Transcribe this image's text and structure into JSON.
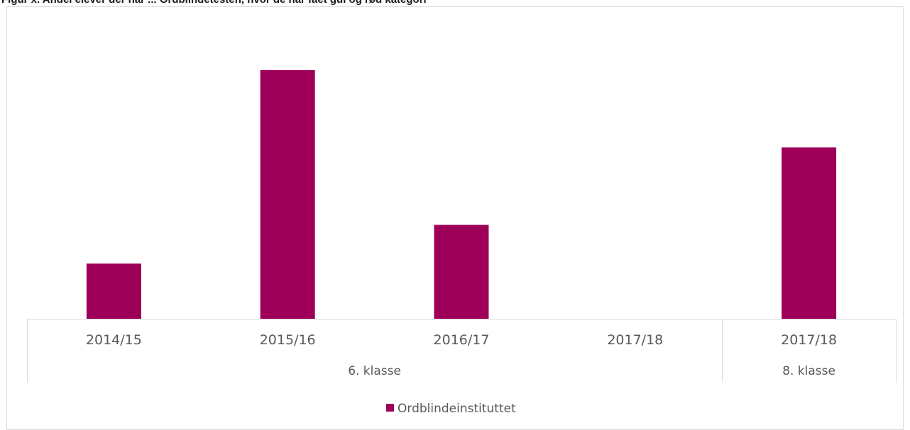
{
  "caption": "Figur x. Andel elever der har ... Ordblindetesten, hvor de har fået gul og rød kategori",
  "colors": {
    "bar": "#9E0059",
    "axis": "#D9D9D9",
    "text": "#595959",
    "frame": "#D9D9D9"
  },
  "chart_data": {
    "type": "bar",
    "categories": [
      "2014/15",
      "2015/16",
      "2016/17",
      "2017/18",
      "2017/18"
    ],
    "groups": [
      {
        "label": "6. klasse",
        "categories": [
          "2014/15",
          "2015/16",
          "2016/17",
          "2017/18"
        ]
      },
      {
        "label": "8. klasse",
        "categories": [
          "2017/18"
        ]
      }
    ],
    "series": [
      {
        "name": "Ordblindeinstituttet",
        "values": [
          1.0,
          4.5,
          1.7,
          0,
          3.1
        ]
      }
    ],
    "ylim": [
      0,
      5
    ],
    "grid": false,
    "y_axis_shown": false,
    "legend_position": "bottom"
  }
}
